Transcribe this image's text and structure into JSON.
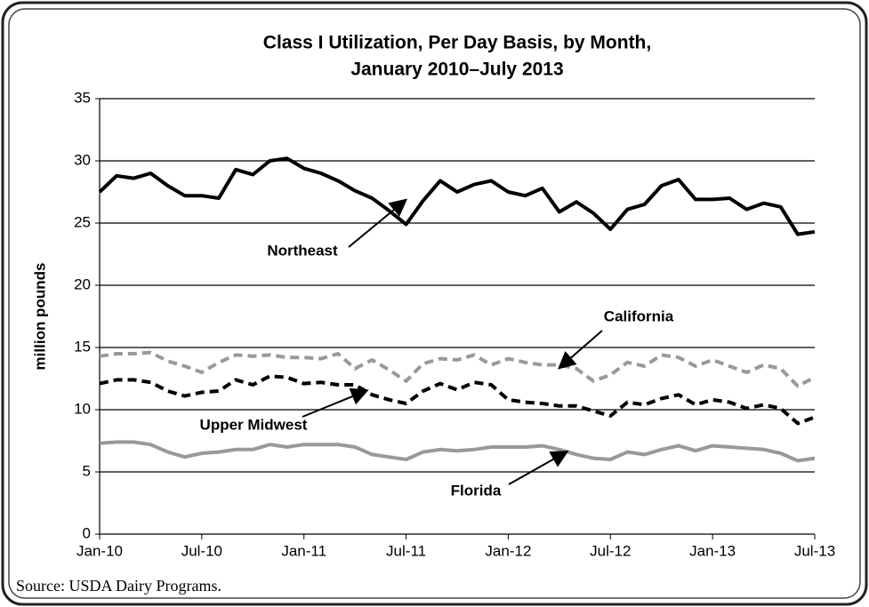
{
  "chart_data": {
    "type": "line",
    "title": "Class I Utilization, Per Day Basis, by Month,",
    "subtitle": "January 2010–July 2013",
    "y_label": "million pounds",
    "source": "Source: USDA Dairy Programs.",
    "categories": [
      "Jan-10",
      null,
      null,
      null,
      null,
      null,
      "Jul-10",
      null,
      null,
      null,
      null,
      null,
      "Jan-11",
      null,
      null,
      null,
      null,
      null,
      "Jul-11",
      null,
      null,
      null,
      null,
      null,
      "Jan-12",
      null,
      null,
      null,
      null,
      null,
      "Jul-12",
      null,
      null,
      null,
      null,
      null,
      "Jan-13",
      null,
      null,
      null,
      null,
      null,
      "Jul-13"
    ],
    "ylim": [
      0,
      35
    ],
    "yticks": [
      0,
      5,
      10,
      15,
      20,
      25,
      30,
      35
    ],
    "grid": true,
    "series": [
      {
        "name": "Northeast",
        "color": "#000000",
        "dashed": false,
        "values": [
          27.5,
          28.8,
          28.6,
          29.0,
          28.0,
          27.2,
          27.2,
          27.0,
          29.3,
          28.9,
          30.0,
          30.2,
          29.4,
          29.0,
          28.4,
          27.6,
          27.0,
          26.0,
          24.9,
          26.8,
          28.4,
          27.5,
          28.1,
          28.4,
          27.5,
          27.2,
          27.8,
          25.9,
          26.7,
          25.8,
          24.5,
          26.1,
          26.5,
          28.0,
          28.5,
          26.9,
          26.9,
          27.0,
          26.1,
          26.6,
          26.3,
          24.1,
          24.3
        ]
      },
      {
        "name": "California",
        "color": "#999999",
        "dashed": true,
        "values": [
          14.3,
          14.5,
          14.5,
          14.6,
          13.9,
          13.5,
          13.0,
          13.8,
          14.4,
          14.3,
          14.4,
          14.2,
          14.2,
          14.1,
          14.5,
          13.3,
          14.0,
          13.2,
          12.3,
          13.7,
          14.1,
          14.0,
          14.4,
          13.6,
          14.1,
          13.8,
          13.6,
          13.6,
          13.3,
          12.3,
          12.8,
          13.8,
          13.5,
          14.4,
          14.2,
          13.5,
          14.0,
          13.5,
          13.0,
          13.6,
          13.3,
          11.9,
          12.6
        ]
      },
      {
        "name": "Upper Midwest",
        "color": "#000000",
        "dashed": true,
        "values": [
          12.1,
          12.4,
          12.4,
          12.2,
          11.5,
          11.1,
          11.4,
          11.5,
          12.4,
          12.0,
          12.7,
          12.6,
          12.1,
          12.2,
          12.0,
          12.0,
          11.2,
          10.8,
          10.5,
          11.5,
          12.1,
          11.6,
          12.2,
          12.0,
          10.8,
          10.6,
          10.5,
          10.3,
          10.3,
          9.9,
          9.5,
          10.6,
          10.4,
          10.9,
          11.2,
          10.4,
          10.8,
          10.6,
          10.1,
          10.4,
          10.1,
          8.9,
          9.4
        ]
      },
      {
        "name": "Florida",
        "color": "#999999",
        "dashed": false,
        "values": [
          7.3,
          7.4,
          7.4,
          7.2,
          6.6,
          6.2,
          6.5,
          6.6,
          6.8,
          6.8,
          7.2,
          7.0,
          7.2,
          7.2,
          7.2,
          7.0,
          6.4,
          6.2,
          6.0,
          6.6,
          6.8,
          6.7,
          6.8,
          7.0,
          7.0,
          7.0,
          7.1,
          6.8,
          6.4,
          6.1,
          6.0,
          6.6,
          6.4,
          6.8,
          7.1,
          6.7,
          7.1,
          7.0,
          6.9,
          6.8,
          6.5,
          5.9,
          6.1
        ]
      }
    ]
  }
}
